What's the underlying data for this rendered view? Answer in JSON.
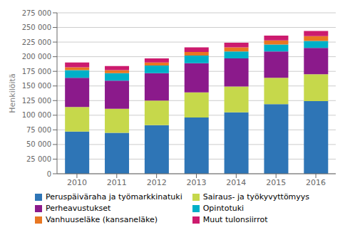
{
  "chart_data": {
    "type": "bar",
    "stacked": true,
    "grid": true,
    "legend": "bottom",
    "ylabel": "Henkilöitä",
    "categories": [
      "2010",
      "2011",
      "2012",
      "2013",
      "2014",
      "2015",
      "2016"
    ],
    "series": [
      {
        "name": "Peruspäiväraha ja työmarkkinatuki",
        "color": "#2e75b6",
        "values": [
          72000,
          70000,
          83000,
          96000,
          105000,
          119000,
          124000
        ]
      },
      {
        "name": "Sairaus- ja työkyvyttömyys",
        "color": "#c6d84b",
        "values": [
          42000,
          41000,
          42000,
          43000,
          44000,
          45000,
          46000
        ]
      },
      {
        "name": "Perheavustukset",
        "color": "#8B1A8B",
        "values": [
          50000,
          48000,
          47000,
          50000,
          48000,
          45000,
          45000
        ]
      },
      {
        "name": "Opintotuki",
        "color": "#00B0C8",
        "values": [
          13000,
          13000,
          13000,
          13000,
          12000,
          12000,
          12000
        ]
      },
      {
        "name": "Vanhuuseläke (kansaneläke)",
        "color": "#E87722",
        "values": [
          5000,
          5000,
          5000,
          6000,
          7000,
          7000,
          8000
        ]
      },
      {
        "name": "Muut tulonsiirrot",
        "color": "#CC1B6E",
        "values": [
          8000,
          7000,
          7000,
          8000,
          8000,
          8000,
          9000
        ]
      }
    ],
    "ylim": [
      0,
      275000
    ],
    "yticks": [
      0,
      {
        "value": 25000,
        "label": "25 000"
      },
      {
        "value": 50000,
        "label": "50 000"
      },
      {
        "value": 75000,
        "label": "75 000"
      },
      {
        "value": 100000,
        "label": "100 000"
      },
      {
        "value": 125000,
        "label": "125 000"
      },
      {
        "value": 150000,
        "label": "150 000"
      },
      {
        "value": 175000,
        "label": "175 000"
      },
      {
        "value": 200000,
        "label": "200 000"
      },
      {
        "value": 225000,
        "label": "225 000"
      },
      {
        "value": 250000,
        "label": "250 000"
      },
      {
        "value": 275000,
        "label": "275 000"
      }
    ]
  }
}
